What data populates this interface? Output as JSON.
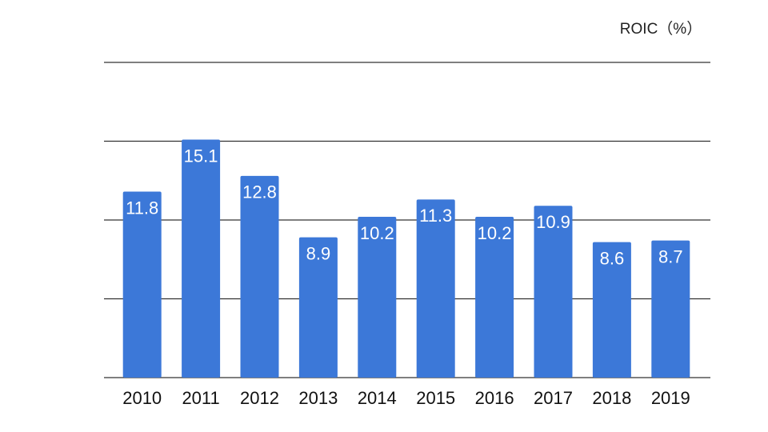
{
  "chart_data": {
    "type": "bar",
    "title": "ROIC（%）",
    "categories": [
      "2010",
      "2011",
      "2012",
      "2013",
      "2014",
      "2015",
      "2016",
      "2017",
      "2018",
      "2019"
    ],
    "values": [
      11.8,
      15.1,
      12.8,
      8.9,
      10.2,
      11.3,
      10.2,
      10.9,
      8.6,
      8.7
    ],
    "color": "#3c78d8",
    "ylim": [
      0,
      20
    ],
    "yticks": [
      0,
      5,
      10,
      15,
      20
    ],
    "grid": true
  }
}
